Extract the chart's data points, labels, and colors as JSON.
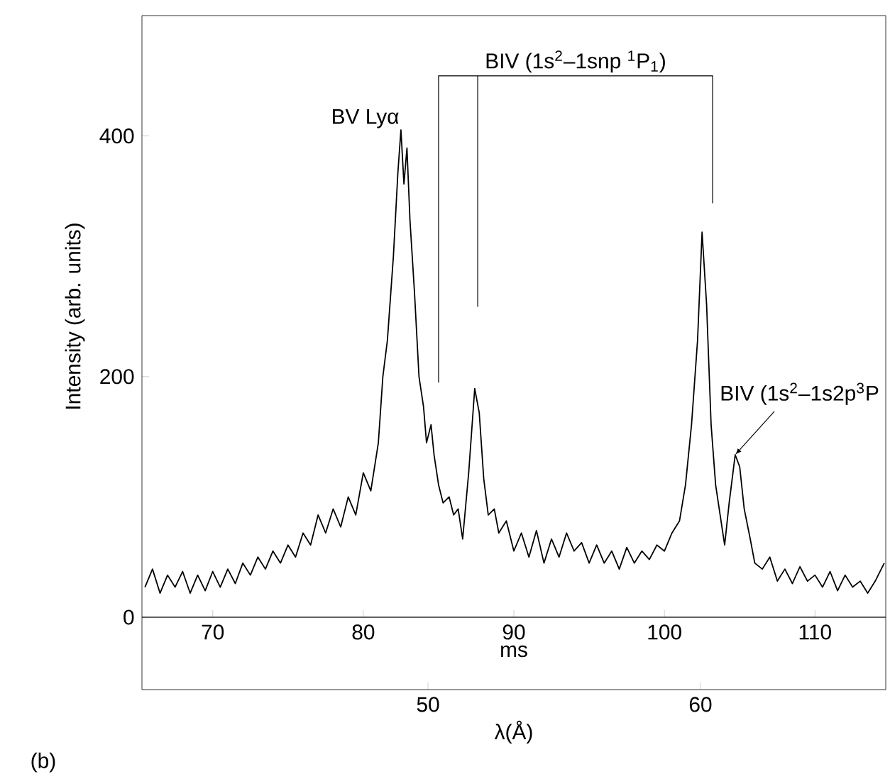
{
  "chart_data": {
    "type": "line",
    "xlabel": "ms",
    "x2label": "λ(Å)",
    "ylabel": "Intensity (arb. units)",
    "color": "#000000",
    "xlim": [
      65.3,
      114.7
    ],
    "xticks": [
      70,
      80,
      90,
      100,
      110
    ],
    "x2lim": [
      39.5,
      66.8
    ],
    "x2ticks": [
      50,
      60
    ],
    "ylim": [
      0,
      500
    ],
    "yticks": [
      0,
      200,
      400
    ],
    "x": [
      65.5,
      66,
      66.5,
      67,
      67.5,
      68,
      68.5,
      69,
      69.5,
      70,
      70.5,
      71,
      71.5,
      72,
      72.5,
      73,
      73.5,
      74,
      74.5,
      75,
      75.5,
      76,
      76.5,
      77,
      77.5,
      78,
      78.5,
      79,
      79.5,
      80,
      80.5,
      81,
      81.3,
      81.6,
      82,
      82.3,
      82.5,
      82.7,
      82.9,
      83.1,
      83.4,
      83.7,
      84,
      84.2,
      84.5,
      84.7,
      85,
      85.3,
      85.7,
      86,
      86.3,
      86.6,
      87,
      87.4,
      87.7,
      88,
      88.3,
      88.7,
      89,
      89.5,
      90,
      90.5,
      91,
      91.5,
      92,
      92.5,
      93,
      93.5,
      94,
      94.5,
      95,
      95.5,
      96,
      96.5,
      97,
      97.5,
      98,
      98.5,
      99,
      99.5,
      100,
      100.5,
      101,
      101.4,
      101.8,
      102.2,
      102.5,
      102.8,
      103.1,
      103.4,
      103.7,
      104,
      104.3,
      104.7,
      105,
      105.3,
      105.7,
      106,
      106.5,
      107,
      107.5,
      108,
      108.5,
      109,
      109.5,
      110,
      110.5,
      111,
      111.5,
      112,
      112.5,
      113,
      113.5,
      114,
      114.6
    ],
    "values": [
      25,
      40,
      20,
      35,
      25,
      38,
      20,
      35,
      22,
      38,
      25,
      40,
      28,
      45,
      35,
      50,
      40,
      55,
      45,
      60,
      50,
      70,
      60,
      85,
      70,
      90,
      75,
      100,
      85,
      120,
      105,
      145,
      200,
      230,
      300,
      370,
      405,
      360,
      390,
      330,
      270,
      200,
      175,
      145,
      160,
      135,
      110,
      95,
      100,
      85,
      90,
      65,
      120,
      190,
      170,
      115,
      85,
      90,
      70,
      80,
      55,
      70,
      50,
      72,
      45,
      65,
      50,
      70,
      55,
      62,
      45,
      60,
      45,
      55,
      40,
      58,
      45,
      55,
      48,
      60,
      55,
      70,
      80,
      110,
      160,
      230,
      320,
      260,
      160,
      110,
      85,
      60,
      95,
      135,
      125,
      90,
      65,
      45,
      40,
      50,
      30,
      40,
      28,
      42,
      30,
      35,
      25,
      38,
      22,
      35,
      25,
      30,
      20,
      30,
      45
    ],
    "annotations": [
      {
        "text": "BV Lyα",
        "x": 82.5,
        "y": 405
      },
      "BIV (1s$^{2}$–1snp $^{1}$P$_{1}$)",
      {
        "text": "BIV (1s$^{2}$–1s2p$^{3}$P",
        "x": 104.7,
        "y": 135
      },
      "(b)"
    ]
  }
}
